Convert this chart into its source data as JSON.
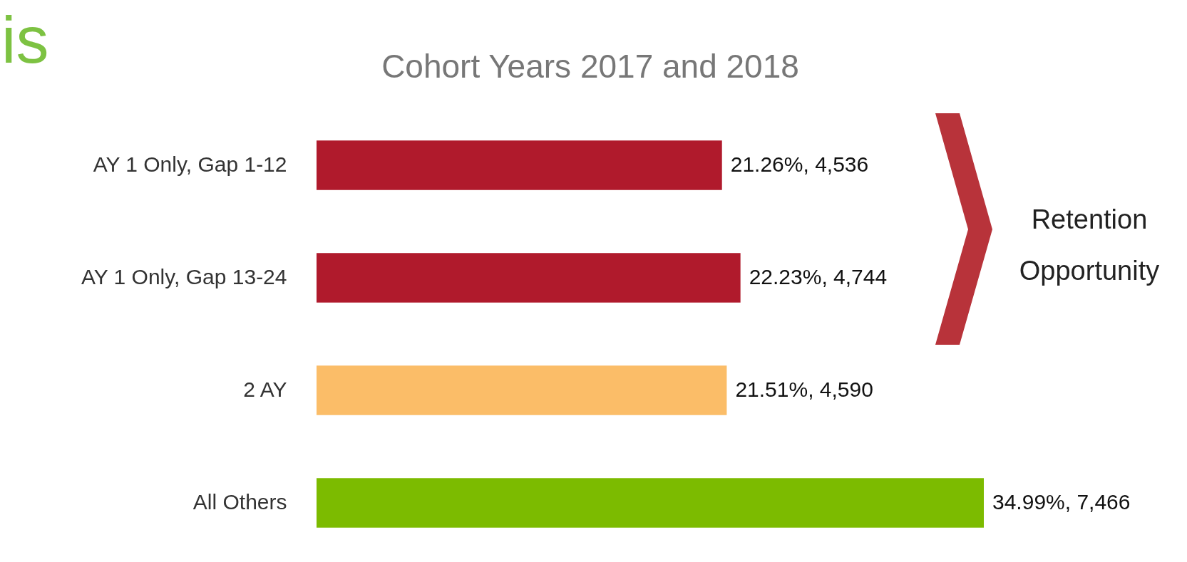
{
  "chart_data": {
    "type": "bar",
    "orientation": "horizontal",
    "title": "Cohort Years 2017 and 2018",
    "categories": [
      "AY 1 Only, Gap 1-12",
      "AY 1 Only, Gap 13-24",
      "2 AY",
      "All Others"
    ],
    "values": [
      21.26,
      22.23,
      21.51,
      34.99
    ],
    "colors": [
      "#b01a2c",
      "#b01a2c",
      "#fbbd68",
      "#7cbb00"
    ],
    "value_labels": [
      "21.26%, 4,536",
      "22.23%, 4,744",
      "21.51%, 4,590",
      "34.99%, 7,466"
    ],
    "annotations": [
      "is",
      "Retention Opportunity"
    ]
  }
}
